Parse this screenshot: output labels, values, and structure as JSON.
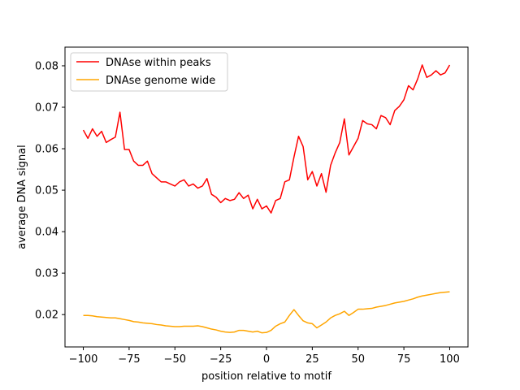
{
  "chart_data": {
    "type": "line",
    "title": "",
    "xlabel": "position relative to motif",
    "ylabel": "average DNA signal",
    "xlim": [
      -110,
      110
    ],
    "ylim": [
      0.0122,
      0.0845
    ],
    "xticks": [
      -100,
      -75,
      -50,
      -25,
      0,
      25,
      50,
      75,
      100
    ],
    "xtick_labels": [
      "−100",
      "−75",
      "−50",
      "−25",
      "0",
      "25",
      "50",
      "75",
      "100"
    ],
    "yticks": [
      0.02,
      0.03,
      0.04,
      0.05,
      0.06,
      0.07,
      0.08
    ],
    "ytick_labels": [
      "0.02",
      "0.03",
      "0.04",
      "0.05",
      "0.06",
      "0.07",
      "0.08"
    ],
    "grid": false,
    "legend_position": "top-left",
    "series": [
      {
        "name": "DNAse within peaks",
        "color": "#ff0000",
        "x": [
          -100,
          -97.5,
          -95,
          -92.5,
          -90,
          -87.5,
          -85,
          -82.5,
          -80,
          -77.5,
          -75,
          -72.5,
          -70,
          -67.5,
          -65,
          -62.5,
          -60,
          -57.5,
          -55,
          -52.5,
          -50,
          -47.5,
          -45,
          -42.5,
          -40,
          -37.5,
          -35,
          -32.5,
          -30,
          -27.5,
          -25,
          -22.5,
          -20,
          -17.5,
          -15,
          -12.5,
          -10,
          -7.5,
          -5,
          -2.5,
          0,
          2.5,
          5,
          7.5,
          10,
          12.5,
          15,
          17.5,
          20,
          22.5,
          25,
          27.5,
          30,
          32.5,
          35,
          37.5,
          40,
          42.5,
          45,
          47.5,
          50,
          52.5,
          55,
          57.5,
          60,
          62.5,
          65,
          67.5,
          70,
          72.5,
          75,
          77.5,
          80,
          82.5,
          85,
          87.5,
          90,
          92.5,
          95,
          97.5,
          100
        ],
        "values": [
          0.0645,
          0.0625,
          0.0648,
          0.063,
          0.0642,
          0.0615,
          0.0622,
          0.0628,
          0.0688,
          0.0598,
          0.0598,
          0.057,
          0.056,
          0.056,
          0.057,
          0.054,
          0.053,
          0.052,
          0.052,
          0.0515,
          0.051,
          0.052,
          0.0525,
          0.051,
          0.0515,
          0.0505,
          0.051,
          0.0528,
          0.049,
          0.0483,
          0.047,
          0.048,
          0.0475,
          0.0478,
          0.0494,
          0.048,
          0.0488,
          0.0455,
          0.0478,
          0.0455,
          0.0462,
          0.0445,
          0.0475,
          0.048,
          0.052,
          0.0525,
          0.058,
          0.063,
          0.0605,
          0.0525,
          0.0545,
          0.051,
          0.054,
          0.0495,
          0.056,
          0.059,
          0.0615,
          0.0672,
          0.0585,
          0.0605,
          0.0625,
          0.0668,
          0.066,
          0.0658,
          0.0648,
          0.068,
          0.0675,
          0.0658,
          0.0692,
          0.0702,
          0.0718,
          0.0752,
          0.0742,
          0.0768,
          0.0802,
          0.0772,
          0.0778,
          0.0788,
          0.0778,
          0.0783,
          0.0802
        ],
        "x_interval_note": null
      },
      {
        "name": "DNAse genome wide",
        "color": "#ffa500",
        "x": [
          -100,
          -97.5,
          -95,
          -92.5,
          -90,
          -87.5,
          -85,
          -82.5,
          -80,
          -77.5,
          -75,
          -72.5,
          -70,
          -67.5,
          -65,
          -62.5,
          -60,
          -57.5,
          -55,
          -52.5,
          -50,
          -47.5,
          -45,
          -42.5,
          -40,
          -37.5,
          -35,
          -32.5,
          -30,
          -27.5,
          -25,
          -22.5,
          -20,
          -17.5,
          -15,
          -12.5,
          -10,
          -7.5,
          -5,
          -2.5,
          0,
          2.5,
          5,
          7.5,
          10,
          12.5,
          15,
          17.5,
          20,
          22.5,
          25,
          27.5,
          30,
          32.5,
          35,
          37.5,
          40,
          42.5,
          45,
          47.5,
          50,
          52.5,
          55,
          57.5,
          60,
          62.5,
          65,
          67.5,
          70,
          72.5,
          75,
          77.5,
          80,
          82.5,
          85,
          87.5,
          90,
          92.5,
          95,
          97.5,
          100
        ],
        "values": [
          0.0198,
          0.0198,
          0.0197,
          0.0195,
          0.0194,
          0.0193,
          0.0192,
          0.0192,
          0.019,
          0.0188,
          0.0186,
          0.0183,
          0.0182,
          0.018,
          0.0179,
          0.0178,
          0.0176,
          0.0175,
          0.0173,
          0.0172,
          0.0171,
          0.0171,
          0.0172,
          0.0172,
          0.0172,
          0.0173,
          0.0171,
          0.0168,
          0.0165,
          0.0163,
          0.016,
          0.0158,
          0.0157,
          0.0158,
          0.0162,
          0.0162,
          0.016,
          0.0158,
          0.016,
          0.0156,
          0.0157,
          0.0162,
          0.0172,
          0.0178,
          0.0182,
          0.0198,
          0.0212,
          0.0198,
          0.0185,
          0.018,
          0.0178,
          0.0168,
          0.0175,
          0.0182,
          0.0192,
          0.0198,
          0.0202,
          0.0208,
          0.0198,
          0.0205,
          0.0213,
          0.0213,
          0.0214,
          0.0215,
          0.0218,
          0.022,
          0.0222,
          0.0225,
          0.0228,
          0.023,
          0.0232,
          0.0235,
          0.0238,
          0.0242,
          0.0245,
          0.0247,
          0.0249,
          0.0251,
          0.0253,
          0.0254,
          0.0255
        ],
        "x_interval_note": null
      }
    ]
  }
}
